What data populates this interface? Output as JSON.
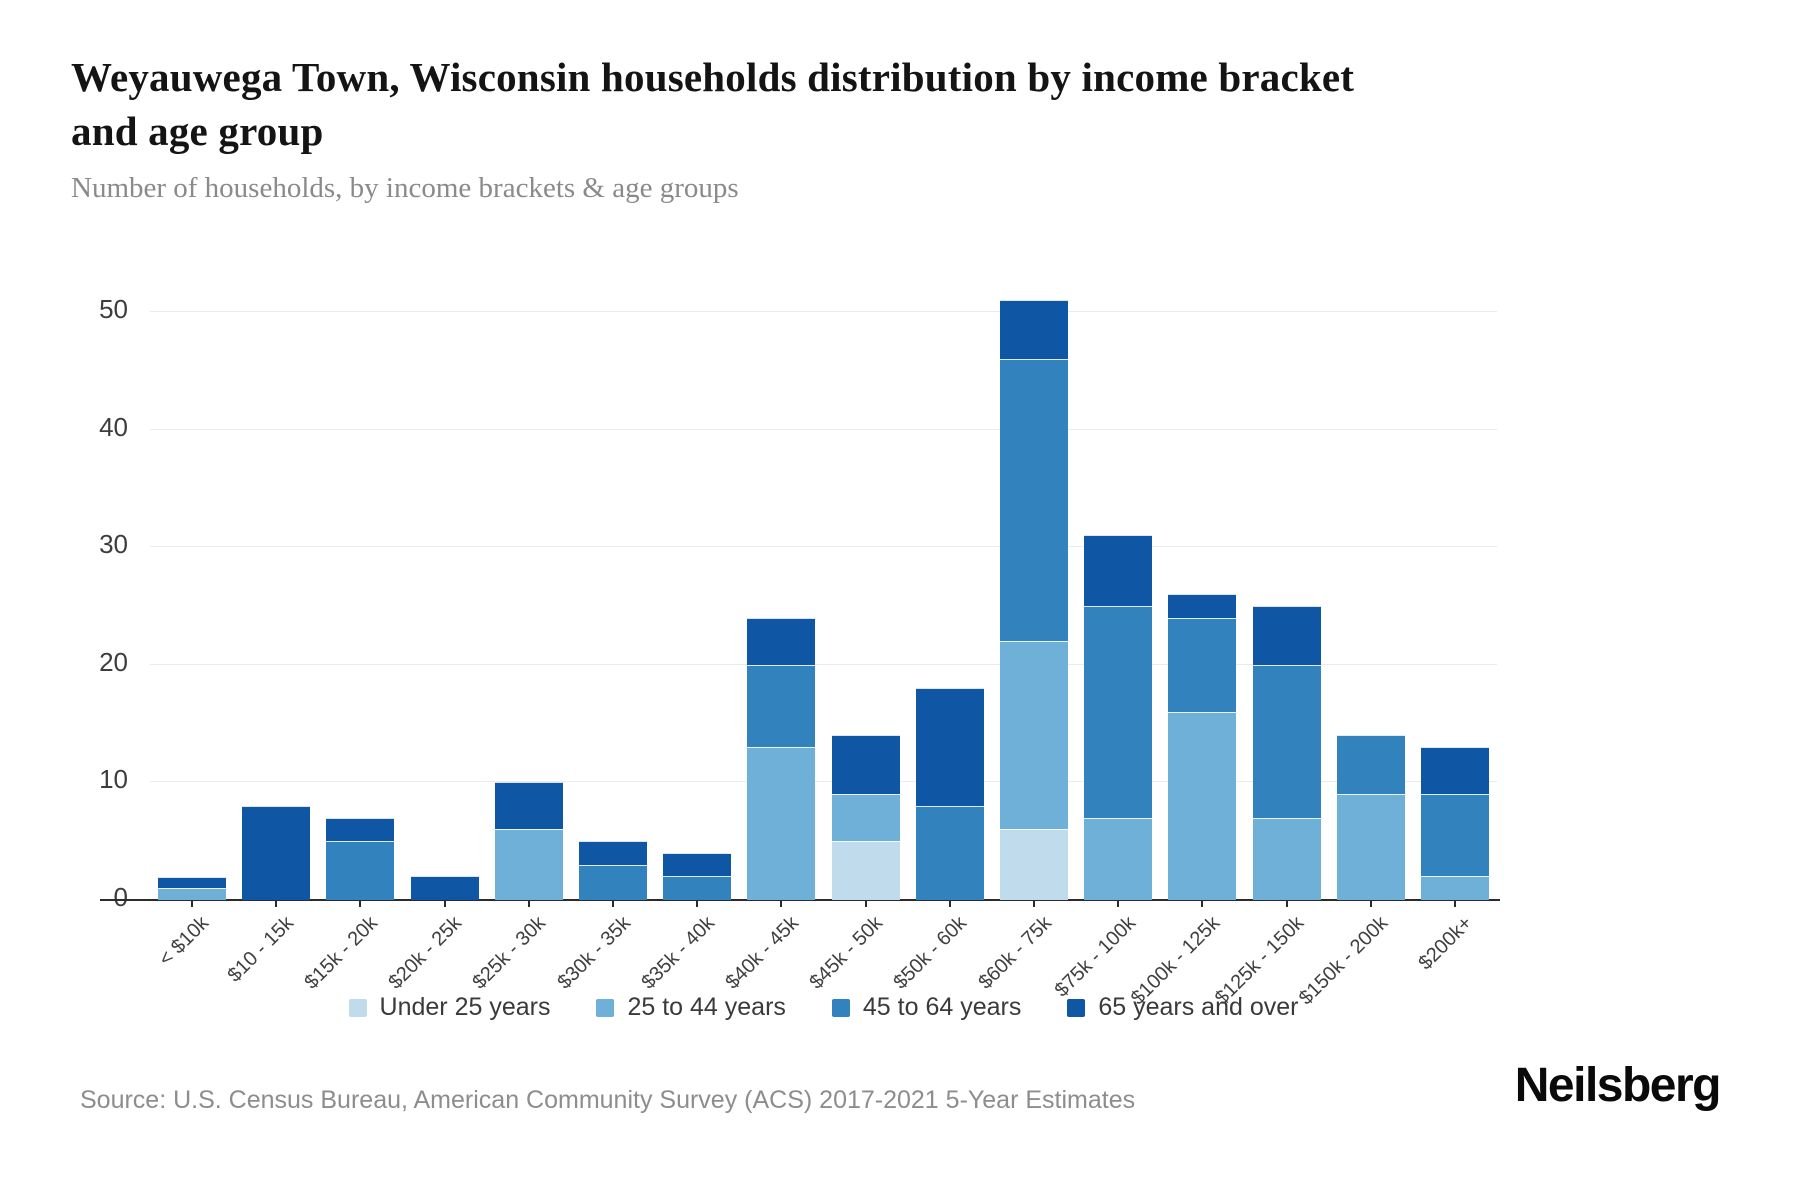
{
  "header": {
    "title": "Weyauwega Town, Wisconsin households distribution by income bracket and age group",
    "subtitle": "Number of households, by income brackets & age groups"
  },
  "chart_data": {
    "type": "bar",
    "stacked": true,
    "title": "Weyauwega Town, Wisconsin households distribution by income bracket and age group",
    "subtitle": "Number of households, by income brackets & age groups",
    "xlabel": "",
    "ylabel": "",
    "ylim": [
      0,
      55
    ],
    "yticks": [
      0,
      10,
      20,
      30,
      40,
      50
    ],
    "grid": true,
    "legend_position": "bottom",
    "categories": [
      "< $10k",
      "$10 - 15k",
      "$15k - 20k",
      "$20k - 25k",
      "$25k - 30k",
      "$30k - 35k",
      "$35k - 40k",
      "$40k - 45k",
      "$45k - 50k",
      "$50k - 60k",
      "$60k - 75k",
      "$75k - 100k",
      "$100k - 125k",
      "$125k - 150k",
      "$150k - 200k",
      "$200k+"
    ],
    "series": [
      {
        "name": "Under 25 years",
        "color": "#bfdbec",
        "values": [
          0,
          0,
          0,
          0,
          0,
          0,
          0,
          0,
          5,
          0,
          6,
          0,
          0,
          0,
          0,
          0
        ]
      },
      {
        "name": "25 to 44 years",
        "color": "#6fb0d8",
        "values": [
          1,
          0,
          0,
          0,
          6,
          0,
          0,
          13,
          4,
          0,
          16,
          7,
          16,
          7,
          9,
          2
        ]
      },
      {
        "name": "45 to 64 years",
        "color": "#3182bd",
        "values": [
          0,
          0,
          5,
          0,
          0,
          3,
          2,
          7,
          0,
          8,
          24,
          18,
          8,
          13,
          5,
          7
        ]
      },
      {
        "name": "65 years and over",
        "color": "#0f57a5",
        "values": [
          1,
          8,
          2,
          2,
          4,
          2,
          2,
          4,
          5,
          10,
          5,
          6,
          2,
          5,
          0,
          4
        ]
      }
    ],
    "totals": [
      2,
      8,
      7,
      2,
      10,
      5,
      4,
      24,
      14,
      18,
      51,
      31,
      26,
      25,
      14,
      13
    ]
  },
  "footer": {
    "source": "Source: U.S. Census Bureau, American Community Survey (ACS) 2017-2021 5-Year Estimates",
    "logo": "Neilsberg"
  }
}
